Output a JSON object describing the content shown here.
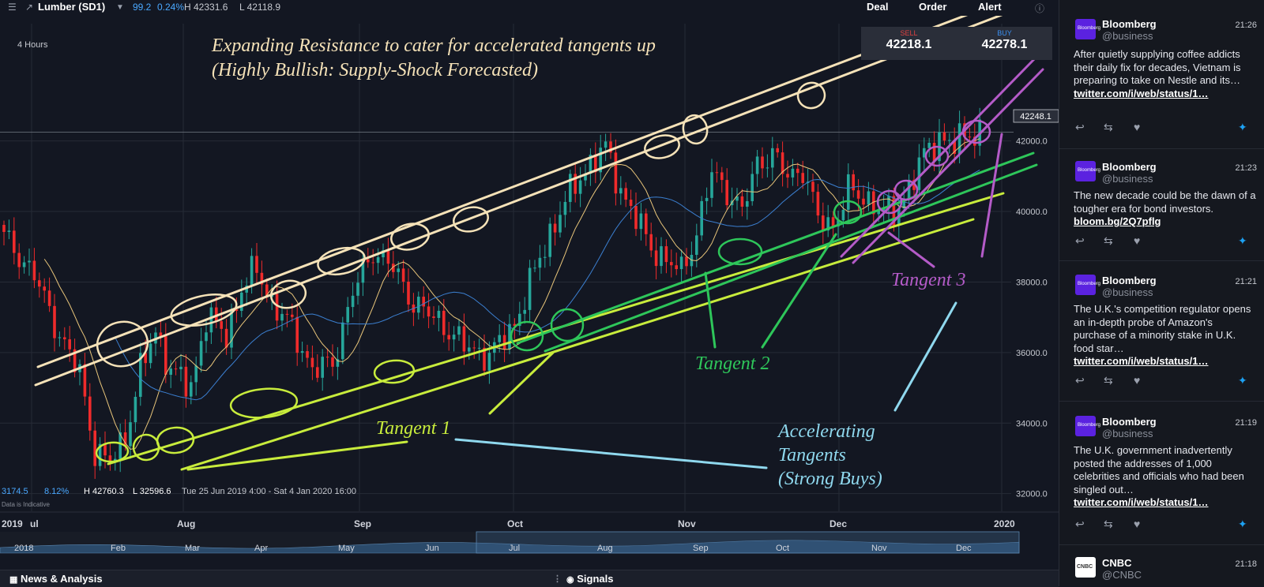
{
  "topbar": {
    "menu_icon": "menu-icon",
    "instrument": "Lumber (SD1)",
    "last": "99.2",
    "change_pct": "0.24%",
    "high": "H 42331.6",
    "low": "L 42118.9",
    "deal_label": "Deal",
    "order_label": "Order",
    "alert_label": "Alert",
    "info_icon": "info-icon"
  },
  "quote": {
    "sell_label": "SELL",
    "sell_value": "42218.1",
    "buy_label": "BUY",
    "buy_value": "42278.1",
    "sell_color": "#e04040",
    "buy_color": "#3a8ff0"
  },
  "chart": {
    "timeframe": "4 Hours",
    "price_label": "42248.1",
    "stats": {
      "left_value": "3174.5",
      "left_pct": "8.12%",
      "high": "H 42760.3",
      "low": "L 32596.6",
      "range": "Tue 25 Jun 2019 4:00 - Sat 4 Jan 2020 16:00"
    },
    "disclaimer": "Data is Indicative",
    "annotations": {
      "title_line1": "Expanding Resistance to cater for accelerated tangents up",
      "title_line2": "(Highly Bullish: Supply-Shock Forecasted)",
      "tangent1": "Tangent 1",
      "tangent2": "Tangent 2",
      "tangent3": "Tangent 3",
      "accel_line1": "Accelerating",
      "accel_line2": "Tangents",
      "accel_line3": "(Strong Buys)"
    },
    "colors": {
      "up": "#26a69a",
      "down": "#ef2b2b",
      "resistance": "#f5e2b8",
      "tangent1": "#c8ec3c",
      "tangent2": "#2ec65a",
      "tangent3": "#b45bc8",
      "accel": "#8fd8ee"
    }
  },
  "chart_data": {
    "type": "candlestick",
    "price_ticks": [
      "42000.0",
      "40000.0",
      "38000.0",
      "36000.0",
      "34000.0",
      "32000.0"
    ],
    "time_axis": [
      "2019",
      "ul",
      "Aug",
      "Sep",
      "Oct",
      "Nov",
      "Dec",
      "2020"
    ],
    "navigator_axis": [
      "2018",
      "Feb",
      "Mar",
      "Apr",
      "May",
      "Jun",
      "Jul",
      "Aug",
      "Sep",
      "Oct",
      "Nov",
      "Dec"
    ],
    "ylim": [
      31500,
      43000
    ],
    "price_path": [
      [
        0,
        39300
      ],
      [
        6,
        38200
      ],
      [
        11,
        36500
      ],
      [
        15,
        35400
      ],
      [
        18,
        33200
      ],
      [
        21,
        32900
      ],
      [
        24,
        33600
      ],
      [
        27,
        35500
      ],
      [
        30,
        36600
      ],
      [
        33,
        35500
      ],
      [
        37,
        35000
      ],
      [
        40,
        37000
      ],
      [
        44,
        36500
      ],
      [
        47,
        37800
      ],
      [
        50,
        38400
      ],
      [
        53,
        37400
      ],
      [
        57,
        36700
      ],
      [
        61,
        35500
      ],
      [
        65,
        35700
      ],
      [
        69,
        37700
      ],
      [
        73,
        38900
      ],
      [
        77,
        38400
      ],
      [
        81,
        37400
      ],
      [
        86,
        36900
      ],
      [
        91,
        36200
      ],
      [
        96,
        35900
      ],
      [
        101,
        36800
      ],
      [
        106,
        38700
      ],
      [
        111,
        40300
      ],
      [
        115,
        41200
      ],
      [
        119,
        41800
      ],
      [
        122,
        40600
      ],
      [
        125,
        39800
      ],
      [
        128,
        39000
      ],
      [
        131,
        38600
      ],
      [
        134,
        38300
      ],
      [
        137,
        39400
      ],
      [
        140,
        41100
      ],
      [
        143,
        40600
      ],
      [
        146,
        40000
      ],
      [
        149,
        41400
      ],
      [
        152,
        41600
      ],
      [
        155,
        41000
      ],
      [
        158,
        41200
      ],
      [
        161,
        39800
      ],
      [
        164,
        39600
      ],
      [
        167,
        40600
      ],
      [
        170,
        40400
      ],
      [
        173,
        40100
      ],
      [
        176,
        39900
      ],
      [
        179,
        40700
      ],
      [
        182,
        41600
      ],
      [
        185,
        42100
      ],
      [
        188,
        41900
      ],
      [
        191,
        42248
      ]
    ]
  },
  "bottombar": {
    "news_icon": "news-icon",
    "news_label": "News & Analysis",
    "signals_icon": "signals-icon",
    "signals_label": "Signals"
  },
  "feed": {
    "tweets": [
      {
        "name": "Bloomberg",
        "handle": "@business",
        "time": "21:26",
        "text": "After quietly supplying coffee addicts their daily fix for decades, Vietnam is preparing to take on Nestle and its…",
        "link": "twitter.com/i/web/status/1…"
      },
      {
        "name": "Bloomberg",
        "handle": "@business",
        "time": "21:23",
        "text": "The new decade could be the dawn of a tougher era for bond investors.",
        "link": "bloom.bg/2Q7pflg"
      },
      {
        "name": "Bloomberg",
        "handle": "@business",
        "time": "21:21",
        "text": "The U.K.'s competition regulator opens an in-depth probe of Amazon's purchase of a minority stake in U.K. food star…",
        "link": "twitter.com/i/web/status/1…"
      },
      {
        "name": "Bloomberg",
        "handle": "@business",
        "time": "21:19",
        "text": "The U.K. government inadvertently posted the addresses of 1,000 celebrities and officials who had been singled out…",
        "link": "twitter.com/i/web/status/1…"
      },
      {
        "name": "CNBC",
        "handle": "@CNBC",
        "time": "21:18",
        "text": "",
        "link": ""
      }
    ],
    "avatar_bloomberg": "Bloomberg",
    "avatar_cnbc": "CNBC",
    "reply_icon": "reply-icon",
    "retweet_icon": "retweet-icon",
    "like_icon": "heart-icon",
    "bird_icon": "twitter-bird-icon"
  }
}
